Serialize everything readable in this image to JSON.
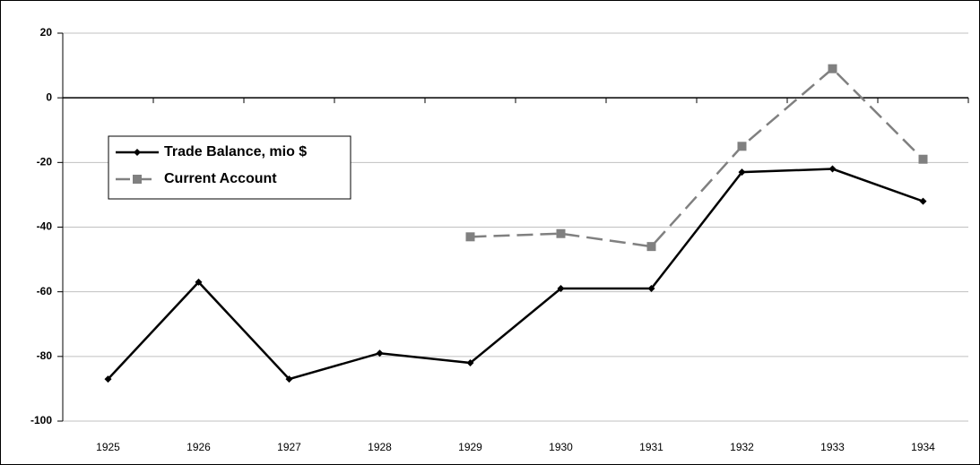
{
  "chart_data": {
    "type": "line",
    "categories": [
      "1925",
      "1926",
      "1927",
      "1928",
      "1929",
      "1930",
      "1931",
      "1932",
      "1933",
      "1934"
    ],
    "series": [
      {
        "name": "Trade Balance, mio $",
        "color": "#000000",
        "dash": false,
        "marker": "diamond",
        "values": [
          -87,
          -57,
          -87,
          -79,
          -82,
          -59,
          -59,
          -23,
          -22,
          -32
        ]
      },
      {
        "name": "Current Account",
        "color": "#808080",
        "dash": true,
        "marker": "square",
        "values": [
          null,
          null,
          null,
          null,
          -43,
          -42,
          -46,
          -15,
          9,
          -19
        ]
      }
    ],
    "ylim": [
      -100,
      20
    ],
    "yticks": [
      -100,
      -80,
      -60,
      -40,
      -20,
      0,
      20
    ],
    "grid": true,
    "legend": "upper left"
  }
}
